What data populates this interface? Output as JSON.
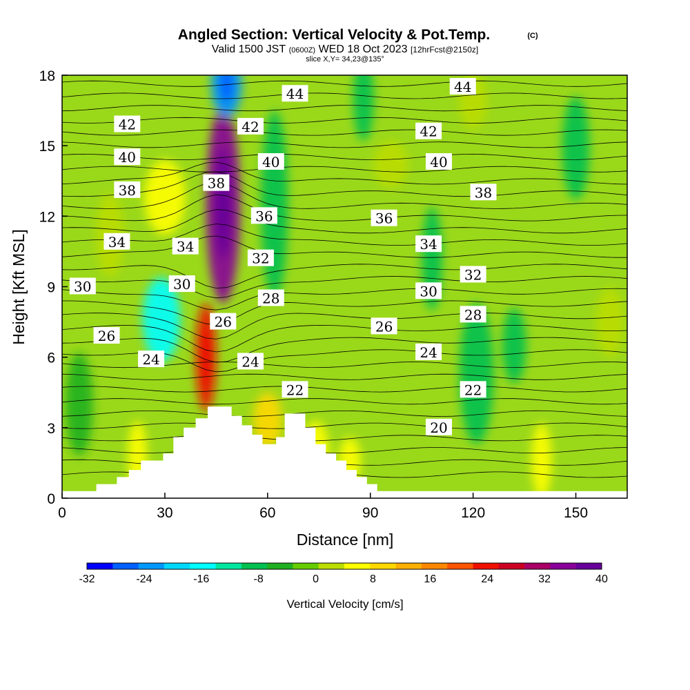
{
  "title": {
    "main": "Angled Section: Vertical Velocity & Pot.Temp.",
    "copyright": "(C)",
    "valid_prefix": "Valid 1500 JST",
    "valid_utc": "(0600Z)",
    "valid_date": "WED 18 Oct 2023",
    "forecast": "[12hrFcst@2150z]",
    "slice": "slice X,Y= 34,23@135°"
  },
  "chart_data": {
    "type": "heatmap",
    "xlabel": "Distance [nm]",
    "ylabel": "Height [Kft MSL]",
    "xlim": [
      0,
      165
    ],
    "ylim": [
      0,
      18
    ],
    "xticks": [
      "0",
      "30",
      "60",
      "90",
      "120",
      "150"
    ],
    "xtick_values": [
      0,
      30,
      60,
      90,
      120,
      150
    ],
    "yticks": [
      "0",
      "3",
      "6",
      "9",
      "12",
      "15",
      "18"
    ],
    "ytick_values": [
      0,
      3,
      6,
      9,
      12,
      15,
      18
    ],
    "terrain_profile": [
      [
        0,
        0.3
      ],
      [
        10,
        0.3
      ],
      [
        10,
        0.6
      ],
      [
        16,
        0.6
      ],
      [
        16,
        0.9
      ],
      [
        19.5,
        0.9
      ],
      [
        19.5,
        1.2
      ],
      [
        23,
        1.2
      ],
      [
        23,
        1.6
      ],
      [
        29.5,
        1.6
      ],
      [
        29.5,
        1.9
      ],
      [
        32.5,
        1.9
      ],
      [
        32.5,
        2.6
      ],
      [
        35.5,
        2.6
      ],
      [
        35.5,
        3.0
      ],
      [
        39,
        3.0
      ],
      [
        39,
        3.4
      ],
      [
        42.5,
        3.4
      ],
      [
        42.5,
        3.9
      ],
      [
        49.5,
        3.9
      ],
      [
        49.5,
        3.5
      ],
      [
        52.5,
        3.5
      ],
      [
        52.5,
        3.1
      ],
      [
        55.5,
        3.1
      ],
      [
        55.5,
        2.7
      ],
      [
        58.5,
        2.7
      ],
      [
        58.5,
        2.3
      ],
      [
        62.5,
        2.3
      ],
      [
        62.5,
        2.6
      ],
      [
        65,
        2.6
      ],
      [
        65,
        3.6
      ],
      [
        71,
        3.6
      ],
      [
        71,
        3.0
      ],
      [
        74,
        3.0
      ],
      [
        74,
        2.3
      ],
      [
        77,
        2.3
      ],
      [
        77,
        1.9
      ],
      [
        80,
        1.9
      ],
      [
        80,
        1.6
      ],
      [
        83,
        1.6
      ],
      [
        83,
        1.2
      ],
      [
        86,
        1.2
      ],
      [
        86,
        0.9
      ],
      [
        89,
        0.9
      ],
      [
        89,
        0.6
      ],
      [
        92,
        0.6
      ],
      [
        92,
        0.3
      ],
      [
        165,
        0.3
      ]
    ],
    "colorbar": {
      "title": "Vertical Velocity [cm/s]",
      "range": [
        -32,
        40
      ],
      "step": 4,
      "tick_labels": [
        "-32",
        "-24",
        "-16",
        "-8",
        "0",
        "8",
        "16",
        "24",
        "32",
        "40"
      ],
      "tick_values": [
        -32,
        -24,
        -16,
        -8,
        0,
        8,
        16,
        24,
        32,
        40
      ],
      "colors": [
        "#0000ff",
        "#0060ff",
        "#0098ff",
        "#00d8ff",
        "#00ffff",
        "#00e8a0",
        "#00c050",
        "#20b020",
        "#66cc00",
        "#bbdd00",
        "#ffff00",
        "#ffd800",
        "#ffb000",
        "#ff8800",
        "#ff5500",
        "#ee1100",
        "#cc0022",
        "#aa0066",
        "#880099",
        "#660099"
      ]
    },
    "velocity_blobs": [
      {
        "x": 47,
        "y": 12.5,
        "rx": 5,
        "ry": 4.2,
        "value": 40
      },
      {
        "x": 42,
        "y": 6.0,
        "rx": 3,
        "ry": 2.3,
        "value": 28
      },
      {
        "x": 48,
        "y": 17.6,
        "rx": 4.5,
        "ry": 1.4,
        "value": -24
      },
      {
        "x": 29,
        "y": 7.6,
        "rx": 5.5,
        "ry": 1.8,
        "value": -14
      },
      {
        "x": 30,
        "y": 12.8,
        "rx": 6,
        "ry": 1.6,
        "value": 10
      },
      {
        "x": 60,
        "y": 3.3,
        "rx": 4.2,
        "ry": 1.2,
        "value": 12
      },
      {
        "x": 74,
        "y": 2.0,
        "rx": 4,
        "ry": 1.3,
        "value": 9
      },
      {
        "x": 108,
        "y": 10.2,
        "rx": 3,
        "ry": 2.2,
        "value": -7
      },
      {
        "x": 121,
        "y": 5.3,
        "rx": 5,
        "ry": 3.0,
        "value": -8
      },
      {
        "x": 150,
        "y": 14.9,
        "rx": 4,
        "ry": 2.2,
        "value": -6
      },
      {
        "x": 140,
        "y": 1.6,
        "rx": 3,
        "ry": 1.6,
        "value": 8
      },
      {
        "x": 120,
        "y": 16.9,
        "rx": 4,
        "ry": 1.2,
        "value": 5
      },
      {
        "x": 88,
        "y": 17.0,
        "rx": 3,
        "ry": 1.8,
        "value": -6
      },
      {
        "x": 14,
        "y": 11.2,
        "rx": 4,
        "ry": 1.8,
        "value": 5
      },
      {
        "x": 22,
        "y": 1.8,
        "rx": 2.8,
        "ry": 1.5,
        "value": 9
      },
      {
        "x": 84,
        "y": 1.6,
        "rx": 3.2,
        "ry": 1.0,
        "value": 8
      },
      {
        "x": 96,
        "y": 14.2,
        "rx": 5,
        "ry": 1.0,
        "value": 4
      },
      {
        "x": 132,
        "y": 6.5,
        "rx": 3.5,
        "ry": 1.6,
        "value": -5
      },
      {
        "x": 160,
        "y": 7.5,
        "rx": 4,
        "ry": 1.5,
        "value": 4
      },
      {
        "x": 5,
        "y": 4.0,
        "rx": 4,
        "ry": 2.2,
        "value": -4
      },
      {
        "x": 62,
        "y": 12.5,
        "rx": 4,
        "ry": 4.0,
        "value": -7
      }
    ],
    "theta_labels": [
      {
        "text": "44",
        "x": 68,
        "y": 17.2
      },
      {
        "text": "44",
        "x": 117,
        "y": 17.5
      },
      {
        "text": "42",
        "x": 19,
        "y": 15.9
      },
      {
        "text": "42",
        "x": 55,
        "y": 15.8
      },
      {
        "text": "42",
        "x": 107,
        "y": 15.6
      },
      {
        "text": "40",
        "x": 19,
        "y": 14.5
      },
      {
        "text": "40",
        "x": 61,
        "y": 14.3
      },
      {
        "text": "40",
        "x": 110,
        "y": 14.3
      },
      {
        "text": "38",
        "x": 19,
        "y": 13.1
      },
      {
        "text": "38",
        "x": 45,
        "y": 13.4
      },
      {
        "text": "38",
        "x": 123,
        "y": 13.0
      },
      {
        "text": "36",
        "x": 59,
        "y": 12.0
      },
      {
        "text": "36",
        "x": 94,
        "y": 11.9
      },
      {
        "text": "34",
        "x": 16,
        "y": 10.9
      },
      {
        "text": "34",
        "x": 36,
        "y": 10.7
      },
      {
        "text": "34",
        "x": 107,
        "y": 10.8
      },
      {
        "text": "32",
        "x": 58,
        "y": 10.2
      },
      {
        "text": "32",
        "x": 120,
        "y": 9.5
      },
      {
        "text": "30",
        "x": 6,
        "y": 9.0
      },
      {
        "text": "30",
        "x": 35,
        "y": 9.1
      },
      {
        "text": "30",
        "x": 107,
        "y": 8.8
      },
      {
        "text": "28",
        "x": 61,
        "y": 8.5
      },
      {
        "text": "28",
        "x": 120,
        "y": 7.8
      },
      {
        "text": "26",
        "x": 13,
        "y": 6.9
      },
      {
        "text": "26",
        "x": 47,
        "y": 7.5
      },
      {
        "text": "26",
        "x": 94,
        "y": 7.3
      },
      {
        "text": "24",
        "x": 26,
        "y": 5.9
      },
      {
        "text": "24",
        "x": 55,
        "y": 5.8
      },
      {
        "text": "24",
        "x": 107,
        "y": 6.2
      },
      {
        "text": "22",
        "x": 68,
        "y": 4.6
      },
      {
        "text": "22",
        "x": 120,
        "y": 4.6
      },
      {
        "text": "20",
        "x": 110,
        "y": 3.0
      }
    ]
  }
}
